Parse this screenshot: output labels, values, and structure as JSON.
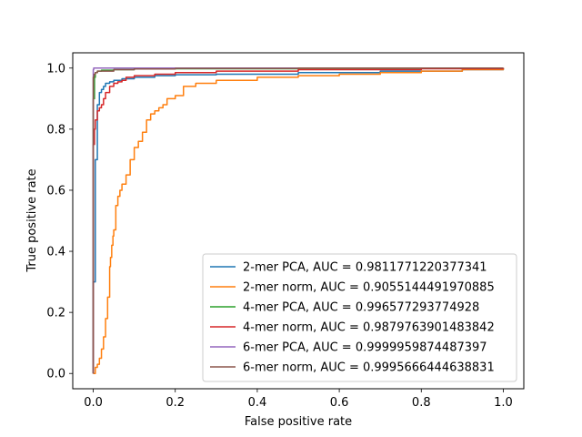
{
  "chart_data": {
    "type": "line",
    "title": "",
    "xlabel": "False positive rate",
    "ylabel": "True positive rate",
    "xlim": [
      -0.05,
      1.05
    ],
    "ylim": [
      -0.05,
      1.05
    ],
    "x_ticks": [
      0.0,
      0.2,
      0.4,
      0.6,
      0.8,
      1.0
    ],
    "y_ticks": [
      0.0,
      0.2,
      0.4,
      0.6,
      0.8,
      1.0
    ],
    "x_tick_labels": [
      "0.0",
      "0.2",
      "0.4",
      "0.6",
      "0.8",
      "1.0"
    ],
    "y_tick_labels": [
      "0.0",
      "0.2",
      "0.4",
      "0.6",
      "0.8",
      "1.0"
    ],
    "grid": false,
    "legend_position": "lower-right",
    "series": [
      {
        "name": "2-mer PCA, AUC = 0.9811771220377341",
        "color": "#1f77b4",
        "x": [
          0,
          0,
          0.005,
          0.005,
          0.01,
          0.01,
          0.015,
          0.02,
          0.025,
          0.03,
          0.04,
          0.05,
          0.07,
          0.1,
          0.15,
          0.2,
          0.3,
          0.5,
          0.7,
          0.9,
          1.0
        ],
        "y": [
          0,
          0.3,
          0.5,
          0.7,
          0.8,
          0.88,
          0.92,
          0.93,
          0.94,
          0.95,
          0.955,
          0.96,
          0.965,
          0.97,
          0.975,
          0.978,
          0.98,
          0.985,
          0.99,
          0.995,
          1.0
        ]
      },
      {
        "name": "2-mer norm, AUC = 0.9055144491970885",
        "color": "#ff7f0e",
        "x": [
          0,
          0.005,
          0.01,
          0.015,
          0.02,
          0.025,
          0.03,
          0.035,
          0.04,
          0.042,
          0.045,
          0.048,
          0.05,
          0.055,
          0.06,
          0.065,
          0.07,
          0.08,
          0.09,
          0.1,
          0.11,
          0.12,
          0.13,
          0.14,
          0.15,
          0.16,
          0.17,
          0.18,
          0.2,
          0.22,
          0.25,
          0.3,
          0.4,
          0.5,
          0.6,
          0.7,
          0.8,
          0.9,
          1.0
        ],
        "y": [
          0,
          0.02,
          0.03,
          0.05,
          0.08,
          0.12,
          0.18,
          0.25,
          0.35,
          0.38,
          0.42,
          0.45,
          0.47,
          0.55,
          0.58,
          0.6,
          0.62,
          0.65,
          0.7,
          0.74,
          0.76,
          0.79,
          0.83,
          0.85,
          0.86,
          0.87,
          0.88,
          0.9,
          0.91,
          0.94,
          0.95,
          0.96,
          0.97,
          0.975,
          0.98,
          0.985,
          0.99,
          0.995,
          1.0
        ]
      },
      {
        "name": "4-mer PCA, AUC = 0.996577293774928",
        "color": "#2ca02c",
        "x": [
          0,
          0,
          0.003,
          0.005,
          0.01,
          0.02,
          0.05,
          0.1,
          0.2,
          0.5,
          1.0
        ],
        "y": [
          0,
          0.9,
          0.97,
          0.985,
          0.99,
          0.993,
          0.995,
          0.997,
          0.998,
          0.999,
          1.0
        ]
      },
      {
        "name": "4-mer norm, AUC = 0.9879763901483842",
        "color": "#d62728",
        "x": [
          0,
          0,
          0.003,
          0.005,
          0.01,
          0.015,
          0.02,
          0.025,
          0.03,
          0.04,
          0.05,
          0.06,
          0.07,
          0.08,
          0.1,
          0.15,
          0.2,
          0.3,
          0.5,
          0.8,
          1.0
        ],
        "y": [
          0,
          0.75,
          0.8,
          0.83,
          0.86,
          0.87,
          0.88,
          0.9,
          0.92,
          0.94,
          0.95,
          0.955,
          0.96,
          0.97,
          0.975,
          0.98,
          0.985,
          0.99,
          0.995,
          0.998,
          1.0
        ]
      },
      {
        "name": "6-mer PCA, AUC = 0.9999959874487397",
        "color": "#9467bd",
        "x": [
          0,
          0,
          0.001,
          1.0
        ],
        "y": [
          0,
          0.995,
          1.0,
          1.0
        ]
      },
      {
        "name": "6-mer norm, AUC = 0.9995666444638831",
        "color": "#8c564b",
        "x": [
          0,
          0,
          0.002,
          0.005,
          0.01,
          0.05,
          0.1,
          0.2,
          0.5,
          1.0
        ],
        "y": [
          0,
          0.97,
          0.98,
          0.985,
          0.99,
          0.995,
          0.997,
          0.999,
          1.0,
          1.0
        ]
      }
    ]
  }
}
